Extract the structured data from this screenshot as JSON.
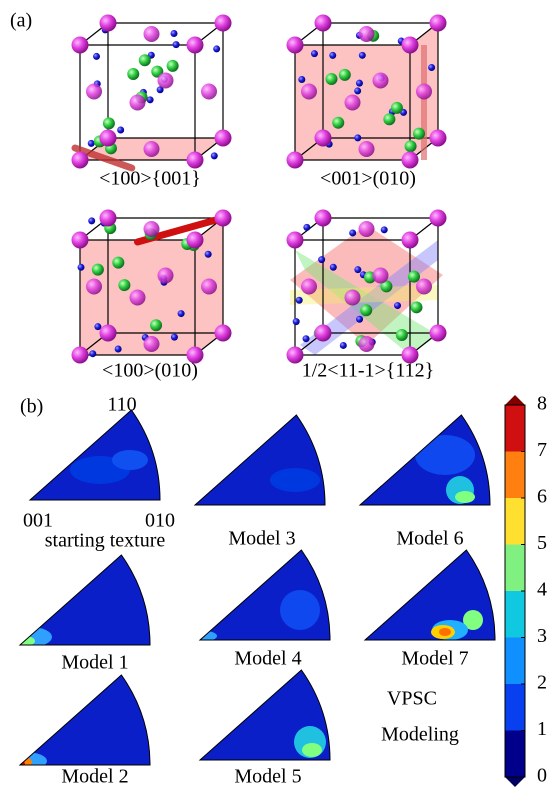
{
  "panel_a": {
    "label": "(a)",
    "structures": [
      {
        "caption": "<100>{001}"
      },
      {
        "caption": "<001>(010)"
      },
      {
        "caption": "<100>(010)"
      },
      {
        "caption": "1/2<11-1>{112}"
      }
    ]
  },
  "panel_b": {
    "label": "(b)",
    "axes": {
      "top": "110",
      "left": "001",
      "right": "010"
    },
    "pole_figures": [
      {
        "title": "starting texture"
      },
      {
        "title": "Model 3"
      },
      {
        "title": "Model 6"
      },
      {
        "title": "Model 1"
      },
      {
        "title": "Model 4"
      },
      {
        "title": "Model 7"
      },
      {
        "title": "Model 2"
      },
      {
        "title": "Model 5"
      }
    ],
    "annotation": [
      "VPSC",
      "Modeling"
    ],
    "colorbar": {
      "ticks": [
        0,
        1,
        2,
        3,
        4,
        5,
        6,
        7,
        8
      ]
    }
  }
}
